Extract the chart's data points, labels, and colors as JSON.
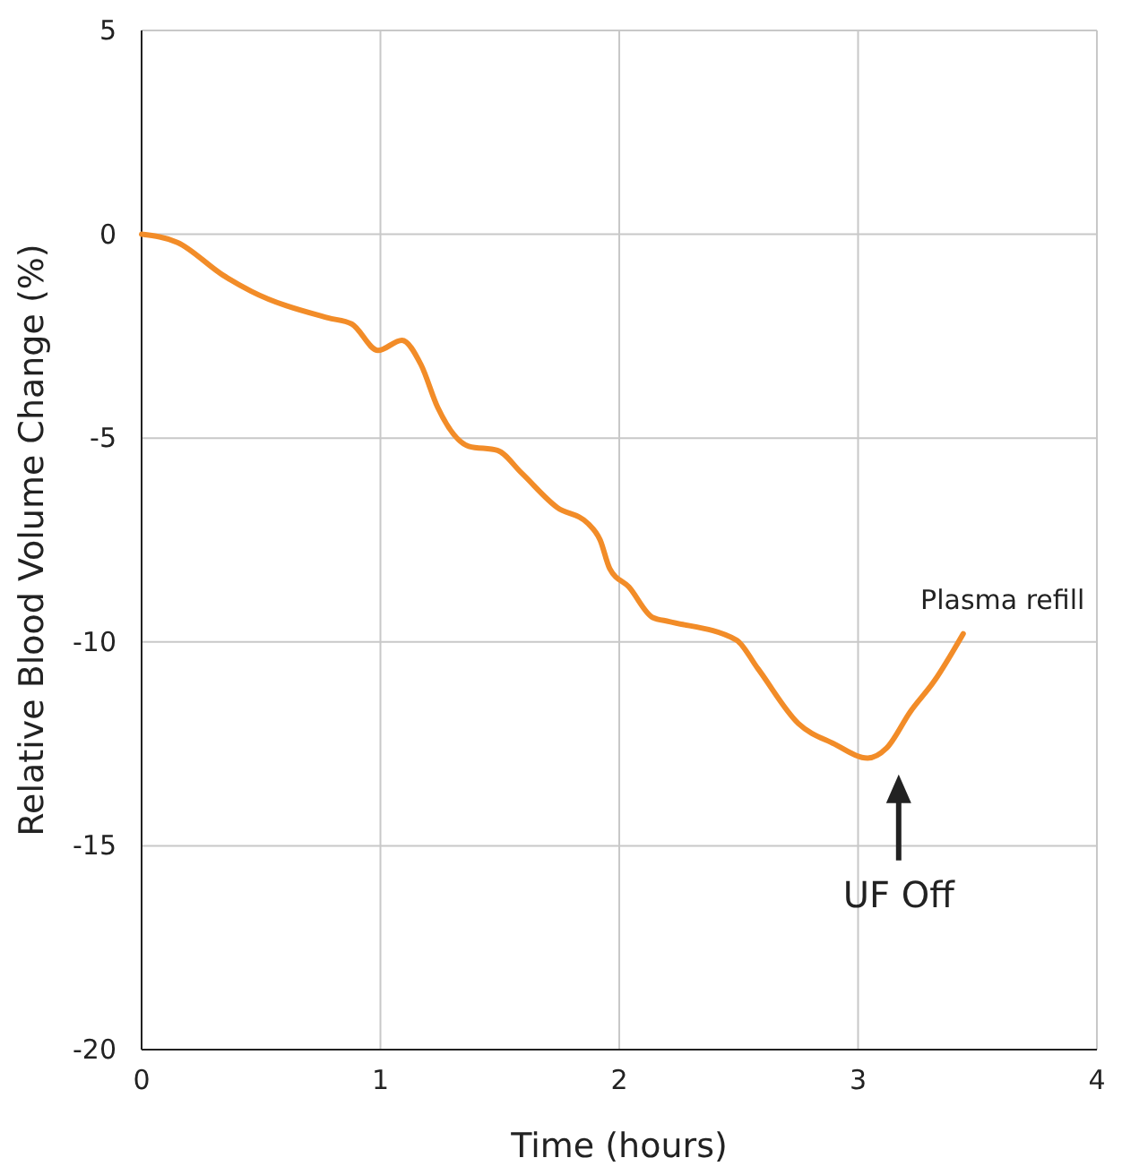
{
  "chart_data": {
    "type": "line",
    "xlabel": "Time (hours)",
    "ylabel": "Relative Blood Volume Change (%)",
    "x": [
      0,
      0.15,
      0.34,
      0.46,
      0.78,
      0.88,
      0.99,
      1.09,
      1.17,
      1.24,
      1.37,
      1.49,
      1.59,
      1.74,
      1.87,
      1.92,
      1.96,
      2.04,
      2.14,
      2.21,
      2.49,
      2.58,
      2.75,
      2.9,
      3.04,
      3.12,
      3.22,
      3.32,
      3.44
    ],
    "series": [
      {
        "color": "#f28c28",
        "values": [
          0,
          -0.2,
          -1.0,
          -1.4,
          -2.05,
          -2.2,
          -2.85,
          -2.6,
          -3.2,
          -4.25,
          -5.2,
          -5.3,
          -5.85,
          -6.7,
          -7.1,
          -7.5,
          -8.2,
          -8.65,
          -9.4,
          -9.5,
          -9.95,
          -10.65,
          -12.0,
          -12.5,
          -12.85,
          -12.6,
          -11.7,
          -10.95,
          -9.8
        ]
      }
    ],
    "xlim": [
      0,
      4
    ],
    "xticks": [
      0,
      1,
      2,
      3,
      4
    ],
    "ylim": [
      -20,
      5
    ],
    "yticks": [
      -20,
      -15,
      -10,
      -5,
      0,
      5
    ],
    "grid": true,
    "marker": "none",
    "line_style": "solid",
    "annotations": [
      "UF Off",
      "Plasma refill"
    ]
  }
}
